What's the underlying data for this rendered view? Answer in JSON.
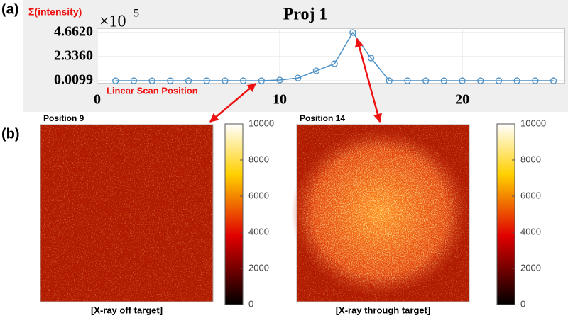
{
  "panel_labels": [
    "(a)",
    "(b)"
  ],
  "chart_data": [
    {
      "type": "line",
      "title": "Proj 1",
      "ylabel": "Σ(intensity)",
      "xlabel": "Linear Scan Position",
      "y_scale_base": "×10",
      "y_scale_exponent": "5",
      "color": "#4a8fc6",
      "grid": true,
      "x": [
        1,
        2,
        3,
        4,
        5,
        6,
        7,
        8,
        9,
        10,
        11,
        12,
        13,
        14,
        15,
        16,
        17,
        18,
        19,
        20,
        21,
        22,
        23,
        24,
        25
      ],
      "values": [
        0.0099,
        0.0099,
        0.0099,
        0.0099,
        0.0099,
        0.0099,
        0.0099,
        0.0099,
        0.0099,
        0.08,
        0.28,
        0.97,
        1.65,
        4.662,
        2.2,
        0.0099,
        0.0099,
        0.0099,
        0.0099,
        0.0099,
        0.0099,
        0.0099,
        0.0099,
        0.0099,
        0.0099
      ],
      "xlim": [
        0,
        25.6
      ],
      "ylim": [
        -0.26,
        5.07
      ],
      "xticks": [
        0,
        10,
        20
      ],
      "yticks": [
        {
          "value": 0.0099,
          "label": "0.0099"
        },
        {
          "value": 2.336,
          "label": "2.3360"
        },
        {
          "value": 4.662,
          "label": "4.6620"
        }
      ]
    },
    {
      "type": "heatmap",
      "title": "Position 9",
      "caption": "[X-ray off target]",
      "clim": [
        0,
        10000
      ],
      "cticks": [
        0,
        2000,
        4000,
        6000,
        8000,
        10000
      ]
    },
    {
      "type": "heatmap",
      "title": "Position 14",
      "caption": "[X-ray through target]",
      "clim": [
        0,
        10000
      ],
      "cticks": [
        0,
        2000,
        4000,
        6000,
        8000,
        10000
      ]
    }
  ]
}
